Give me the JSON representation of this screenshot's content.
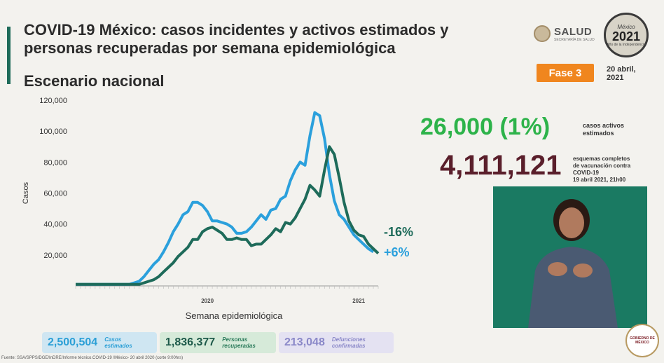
{
  "header": {
    "title": "COVID-19 México: casos incidentes y activos estimados y personas recuperadas por semana epidemiológica",
    "subtitle": "Escenario nacional",
    "salud": "SALUD",
    "salud_sub": "SECRETARÍA DE SALUD",
    "mexico_top": "México",
    "mexico_year": "2021",
    "mexico_sub": "Año de la Independencia",
    "fase": "Fase 3",
    "date_line1": "20 abril,",
    "date_line2": "2021"
  },
  "kpis": {
    "active_value": "26,000 (1%)",
    "active_label": "casos activos estimados",
    "vacc_value": "4,111,121",
    "vacc_label_1": "esquemas completos",
    "vacc_label_2": "de vacunación contra",
    "vacc_label_3": "COVID-19",
    "vacc_label_4": "19 abril 2021, 21h00"
  },
  "stats": [
    {
      "value": "2,500,504",
      "label_1": "Casos",
      "label_2": "estimados"
    },
    {
      "value": "1,836,377",
      "label_1": "Personas",
      "label_2": "recuperadas"
    },
    {
      "value": "213,048",
      "label_1": "Defunciones",
      "label_2": "confirmadas"
    }
  ],
  "footer": "Fuente: SSA/SPPS/DGE/InDRE/Informe técnico.COVID-19 /México- 20 abril 2020 (corte 9:00hrs)",
  "gob": {
    "line1": "GOBIERNO DE",
    "line2": "MÉXICO"
  },
  "chart_data": {
    "type": "line",
    "xlabel": "Semana epidemiológica",
    "ylabel": "Casos",
    "ylim": [
      0,
      120000
    ],
    "yticks": [
      20000,
      40000,
      60000,
      80000,
      100000,
      120000
    ],
    "ytick_labels": [
      "20,000",
      "40,000",
      "60,000",
      "80,000",
      "100,000",
      "120,000"
    ],
    "year_labels": [
      {
        "label": "2020",
        "x": 27
      },
      {
        "label": "2021",
        "x": 58
      }
    ],
    "annotations": [
      {
        "text": "-16%",
        "color": "#1e6b5a"
      },
      {
        "text": "+6%",
        "color": "#2ba0dc"
      }
    ],
    "series": [
      {
        "color": "#2ba0dc",
        "values": [
          1000,
          1000,
          1000,
          1000,
          1000,
          1000,
          1000,
          1000,
          1000,
          1000,
          1000,
          1000,
          2000,
          3000,
          6000,
          10000,
          14000,
          17000,
          22000,
          28000,
          35000,
          40000,
          46000,
          48000,
          54000,
          54000,
          52000,
          48000,
          42000,
          42000,
          41000,
          40000,
          38000,
          34000,
          34000,
          35000,
          38000,
          42000,
          46000,
          43000,
          49000,
          50000,
          56000,
          58000,
          68000,
          75000,
          80000,
          78000,
          97000,
          112000,
          110000,
          95000,
          72000,
          55000,
          46000,
          43000,
          38000,
          33000,
          30000,
          27000,
          24000,
          22000
        ]
      },
      {
        "color": "#1e6b5a",
        "values": [
          1000,
          1000,
          1000,
          1000,
          1000,
          1000,
          1000,
          1000,
          1000,
          1000,
          1000,
          1000,
          1000,
          1000,
          2000,
          3000,
          4000,
          6000,
          9000,
          12000,
          15000,
          19000,
          22000,
          25000,
          30000,
          30000,
          35000,
          37000,
          38000,
          36000,
          34000,
          30000,
          30000,
          31000,
          30000,
          30000,
          26000,
          27000,
          27000,
          30000,
          33000,
          37000,
          35000,
          41000,
          40000,
          44000,
          50000,
          56000,
          65000,
          62000,
          58000,
          75000,
          90000,
          85000,
          70000,
          54000,
          42000,
          36000,
          33000,
          32000,
          27000,
          24000,
          21000
        ]
      }
    ]
  }
}
